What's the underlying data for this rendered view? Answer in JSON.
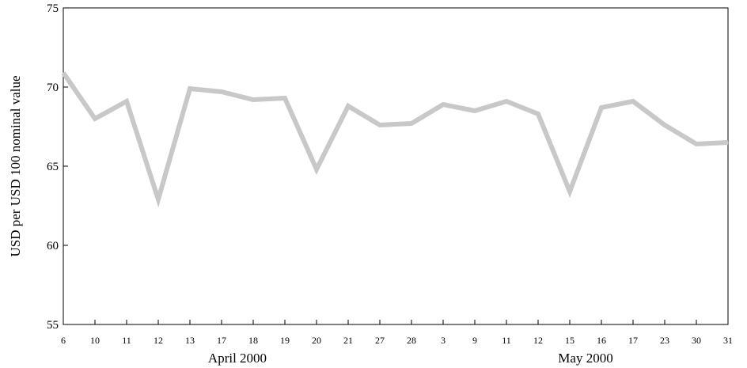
{
  "chart_data": {
    "type": "line",
    "title": "",
    "xlabel": "",
    "ylabel": "USD per USD 100 nominal value",
    "ylim": [
      55,
      75
    ],
    "yticks": [
      55,
      60,
      65,
      70,
      75
    ],
    "grid": false,
    "categories": [
      "6",
      "10",
      "11",
      "12",
      "13",
      "17",
      "18",
      "19",
      "20",
      "21",
      "27",
      "28",
      "3",
      "9",
      "11",
      "12",
      "15",
      "16",
      "17",
      "23",
      "30",
      "31"
    ],
    "groups": [
      {
        "label": "April 2000",
        "from": 0,
        "to": 11
      },
      {
        "label": "May 2000",
        "from": 12,
        "to": 21
      }
    ],
    "series": [
      {
        "color": "#c8c8c8",
        "values": [
          70.9,
          68.0,
          69.1,
          62.9,
          69.9,
          69.7,
          69.2,
          69.3,
          64.8,
          68.8,
          67.6,
          67.7,
          68.9,
          68.5,
          69.1,
          68.3,
          63.4,
          68.7,
          69.1,
          67.6,
          66.4,
          66.5
        ]
      }
    ]
  }
}
